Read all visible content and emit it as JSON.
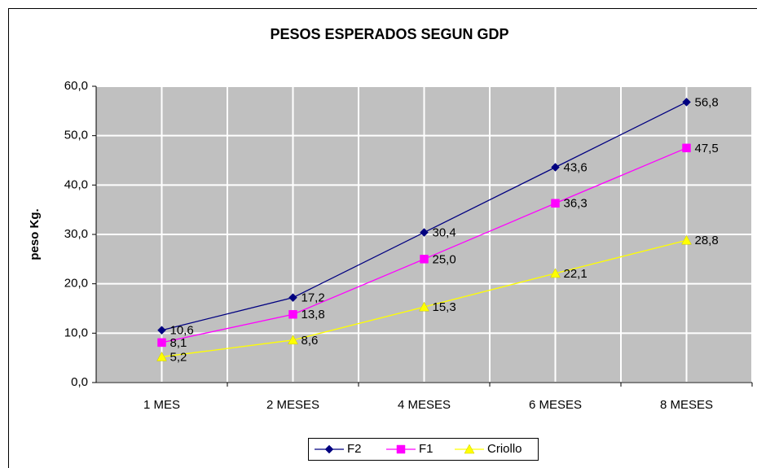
{
  "chart_data": {
    "type": "line",
    "title": "PESOS ESPERADOS SEGUN GDP",
    "y_label": "peso Kg.",
    "categories": [
      "1 MES",
      "2 MESES",
      "4 MESES",
      "6 MESES",
      "8 MESES"
    ],
    "series": [
      {
        "name": "F2",
        "color": "#000080",
        "marker": "diamond",
        "values": [
          10.6,
          17.2,
          30.4,
          43.6,
          56.8
        ],
        "value_labels": [
          "10,6",
          "17,2",
          "30,4",
          "43,6",
          "56,8"
        ]
      },
      {
        "name": "F1",
        "color": "#ff00ff",
        "marker": "square",
        "values": [
          8.1,
          13.8,
          25.0,
          36.3,
          47.5
        ],
        "value_labels": [
          "8,1",
          "13,8",
          "25,0",
          "36,3",
          "47,5"
        ]
      },
      {
        "name": "Criollo",
        "color": "#ffff00",
        "marker": "triangle",
        "values": [
          5.2,
          8.6,
          15.3,
          22.1,
          28.8
        ],
        "value_labels": [
          "5,2",
          "8,6",
          "15,3",
          "22,1",
          "28,8"
        ]
      }
    ],
    "ylim": [
      0,
      60
    ],
    "yticks": [
      {
        "value": 0,
        "label": "0,0"
      },
      {
        "value": 10,
        "label": "10,0"
      },
      {
        "value": 20,
        "label": "20,0"
      },
      {
        "value": 30,
        "label": "30,0"
      },
      {
        "value": 40,
        "label": "40,0"
      },
      {
        "value": 50,
        "label": "50,0"
      },
      {
        "value": 60,
        "label": "60,0"
      }
    ],
    "grid": true,
    "legend": "bottom"
  }
}
